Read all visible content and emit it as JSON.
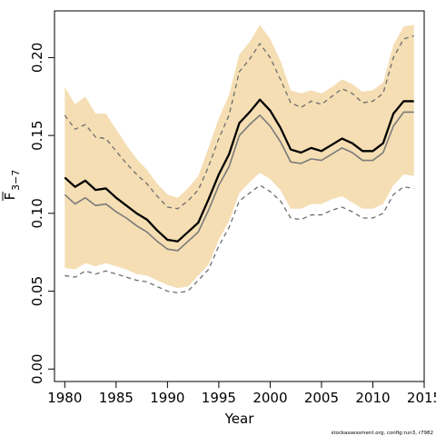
{
  "chart_data": {
    "type": "line",
    "xlabel": "Year",
    "ylabel_main": "F",
    "ylabel_sub": "3−7",
    "xlim": [
      1979,
      2015
    ],
    "ylim": [
      -0.008,
      0.23
    ],
    "xticks": [
      1980,
      1985,
      1990,
      1995,
      2000,
      2005,
      2010,
      2015
    ],
    "yticks": [
      0.0,
      0.05,
      0.1,
      0.15,
      0.2
    ],
    "ytick_labels": [
      "0.00",
      "0.05",
      "0.10",
      "0.15",
      "0.20"
    ],
    "grid": false,
    "band_color": "#f5deb3",
    "x": [
      1980,
      1981,
      1982,
      1983,
      1984,
      1985,
      1986,
      1987,
      1988,
      1989,
      1990,
      1991,
      1992,
      1993,
      1994,
      1995,
      1996,
      1997,
      1998,
      1999,
      2000,
      2001,
      2002,
      2003,
      2004,
      2005,
      2006,
      2007,
      2008,
      2009,
      2010,
      2011,
      2012,
      2013,
      2014
    ],
    "series": [
      {
        "role": "band_upper",
        "values": [
          0.181,
          0.17,
          0.175,
          0.164,
          0.164,
          0.154,
          0.144,
          0.135,
          0.128,
          0.119,
          0.112,
          0.11,
          0.116,
          0.124,
          0.142,
          0.161,
          0.176,
          0.202,
          0.21,
          0.221,
          0.212,
          0.198,
          0.179,
          0.177,
          0.179,
          0.177,
          0.181,
          0.186,
          0.183,
          0.178,
          0.179,
          0.184,
          0.208,
          0.22,
          0.221
        ]
      },
      {
        "role": "band_lower",
        "values": [
          0.065,
          0.064,
          0.068,
          0.066,
          0.068,
          0.066,
          0.064,
          0.061,
          0.06,
          0.057,
          0.054,
          0.052,
          0.053,
          0.06,
          0.067,
          0.083,
          0.095,
          0.113,
          0.12,
          0.126,
          0.122,
          0.115,
          0.103,
          0.103,
          0.106,
          0.106,
          0.109,
          0.111,
          0.107,
          0.103,
          0.103,
          0.106,
          0.118,
          0.125,
          0.124
        ]
      },
      {
        "role": "upper_dashed",
        "values": [
          0.163,
          0.154,
          0.157,
          0.149,
          0.148,
          0.14,
          0.132,
          0.125,
          0.119,
          0.111,
          0.104,
          0.103,
          0.108,
          0.115,
          0.13,
          0.148,
          0.163,
          0.191,
          0.199,
          0.209,
          0.2,
          0.186,
          0.171,
          0.168,
          0.172,
          0.17,
          0.175,
          0.18,
          0.177,
          0.171,
          0.172,
          0.177,
          0.2,
          0.212,
          0.214
        ]
      },
      {
        "role": "estimate",
        "values": [
          0.123,
          0.117,
          0.121,
          0.115,
          0.116,
          0.11,
          0.105,
          0.1,
          0.096,
          0.089,
          0.083,
          0.082,
          0.088,
          0.094,
          0.109,
          0.125,
          0.138,
          0.158,
          0.165,
          0.173,
          0.166,
          0.155,
          0.141,
          0.139,
          0.142,
          0.14,
          0.144,
          0.148,
          0.145,
          0.14,
          0.14,
          0.145,
          0.164,
          0.172,
          0.172
        ]
      },
      {
        "role": "median_grey",
        "values": [
          0.112,
          0.106,
          0.11,
          0.105,
          0.106,
          0.101,
          0.097,
          0.092,
          0.088,
          0.082,
          0.077,
          0.076,
          0.082,
          0.088,
          0.102,
          0.118,
          0.13,
          0.15,
          0.157,
          0.163,
          0.156,
          0.146,
          0.133,
          0.132,
          0.135,
          0.134,
          0.138,
          0.142,
          0.139,
          0.134,
          0.134,
          0.139,
          0.156,
          0.165,
          0.165
        ]
      },
      {
        "role": "lower_dashed",
        "values": [
          0.06,
          0.059,
          0.063,
          0.061,
          0.063,
          0.061,
          0.059,
          0.057,
          0.056,
          0.053,
          0.05,
          0.049,
          0.05,
          0.057,
          0.064,
          0.079,
          0.091,
          0.108,
          0.113,
          0.118,
          0.114,
          0.108,
          0.097,
          0.096,
          0.099,
          0.099,
          0.102,
          0.104,
          0.101,
          0.097,
          0.097,
          0.1,
          0.112,
          0.117,
          0.116
        ]
      }
    ],
    "footnote": "stockassessment.org, config:run3, r7982"
  }
}
